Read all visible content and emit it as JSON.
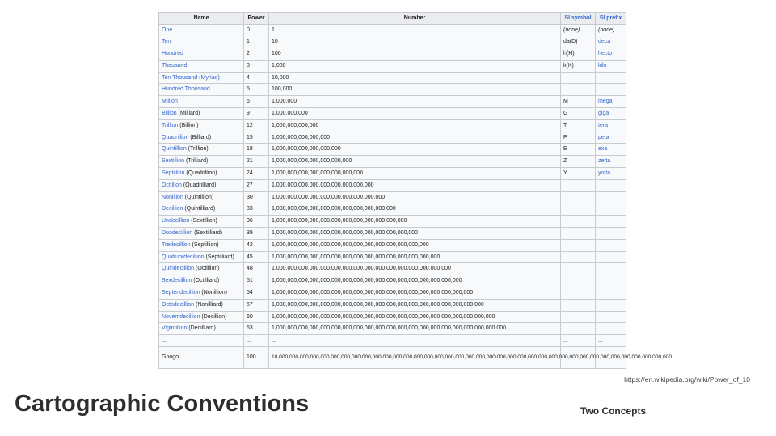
{
  "table": {
    "headers": {
      "name": "Name",
      "power": "Power",
      "number": "Number",
      "si_symbol": "SI symbol",
      "si_prefix": "SI prefix"
    },
    "rows": [
      {
        "name": "One",
        "alt": "",
        "power": "0",
        "number": "1",
        "symbol": "(none)",
        "prefix": "(none)"
      },
      {
        "name": "Ten",
        "alt": "",
        "power": "1",
        "number": "10",
        "symbol": "da(D)",
        "prefix": "deca"
      },
      {
        "name": "Hundred",
        "alt": "",
        "power": "2",
        "number": "100",
        "symbol": "h(H)",
        "prefix": "hecto"
      },
      {
        "name": "Thousand",
        "alt": "",
        "power": "3",
        "number": "1,000",
        "symbol": "k(K)",
        "prefix": "kilo"
      },
      {
        "name": "Ten Thousand (Myriad)",
        "alt": "",
        "power": "4",
        "number": "10,000",
        "symbol": "",
        "prefix": ""
      },
      {
        "name": "Hundred Thousand",
        "alt": "",
        "power": "5",
        "number": "100,000",
        "symbol": "",
        "prefix": ""
      },
      {
        "name": "Million",
        "alt": "",
        "power": "6",
        "number": "1,000,000",
        "symbol": "M",
        "prefix": "mega"
      },
      {
        "name": "Billion",
        "alt": " (Milliard)",
        "power": "9",
        "number": "1,000,000,000",
        "symbol": "G",
        "prefix": "giga"
      },
      {
        "name": "Trillion",
        "alt": " (Billion)",
        "power": "12",
        "number": "1,000,000,000,000",
        "symbol": "T",
        "prefix": "tera"
      },
      {
        "name": "Quadrillion",
        "alt": " (Billiard)",
        "power": "15",
        "number": "1,000,000,000,000,000",
        "symbol": "P",
        "prefix": "peta"
      },
      {
        "name": "Quintillion",
        "alt": " (Trillion)",
        "power": "18",
        "number": "1,000,000,000,000,000,000",
        "symbol": "E",
        "prefix": "exa"
      },
      {
        "name": "Sextillion",
        "alt": " (Trilliard)",
        "power": "21",
        "number": "1,000,000,000,000,000,000,000",
        "symbol": "Z",
        "prefix": "zetta"
      },
      {
        "name": "Septillion",
        "alt": " (Quadrillion)",
        "power": "24",
        "number": "1,000,000,000,000,000,000,000,000",
        "symbol": "Y",
        "prefix": "yotta"
      },
      {
        "name": "Octillion",
        "alt": " (Quadrilliard)",
        "power": "27",
        "number": "1,000,000,000,000,000,000,000,000,000",
        "symbol": "",
        "prefix": ""
      },
      {
        "name": "Nonillion",
        "alt": " (Quintillion)",
        "power": "30",
        "number": "1,000,000,000,000,000,000,000,000,000,000",
        "symbol": "",
        "prefix": ""
      },
      {
        "name": "Decillion",
        "alt": " (Quintilliard)",
        "power": "33",
        "number": "1,000,000,000,000,000,000,000,000,000,000,000",
        "symbol": "",
        "prefix": ""
      },
      {
        "name": "Undecillion",
        "alt": " (Sextillion)",
        "power": "36",
        "number": "1,000,000,000,000,000,000,000,000,000,000,000,000",
        "symbol": "",
        "prefix": ""
      },
      {
        "name": "Duodecillion",
        "alt": " (Sextilliard)",
        "power": "39",
        "number": "1,000,000,000,000,000,000,000,000,000,000,000,000,000",
        "symbol": "",
        "prefix": ""
      },
      {
        "name": "Tredecillion",
        "alt": " (Septillion)",
        "power": "42",
        "number": "1,000,000,000,000,000,000,000,000,000,000,000,000,000,000",
        "symbol": "",
        "prefix": ""
      },
      {
        "name": "Quattuordecillion",
        "alt": " (Septilliard)",
        "power": "45",
        "number": "1,000,000,000,000,000,000,000,000,000,000,000,000,000,000,000",
        "symbol": "",
        "prefix": ""
      },
      {
        "name": "Quindecillion",
        "alt": " (Octillion)",
        "power": "48",
        "number": "1,000,000,000,000,000,000,000,000,000,000,000,000,000,000,000,000",
        "symbol": "",
        "prefix": ""
      },
      {
        "name": "Sexdecillion",
        "alt": " (Octilliard)",
        "power": "51",
        "number": "1,000,000,000,000,000,000,000,000,000,000,000,000,000,000,000,000,000",
        "symbol": "",
        "prefix": ""
      },
      {
        "name": "Septendecillion",
        "alt": " (Nonillion)",
        "power": "54",
        "number": "1,000,000,000,000,000,000,000,000,000,000,000,000,000,000,000,000,000,000",
        "symbol": "",
        "prefix": ""
      },
      {
        "name": "Octodecillion",
        "alt": " (Nonilliard)",
        "power": "57",
        "number": "1,000,000,000,000,000,000,000,000,000,000,000,000,000,000,000,000,000,000,000",
        "symbol": "",
        "prefix": ""
      },
      {
        "name": "Novemdecillion",
        "alt": " (Decillion)",
        "power": "60",
        "number": "1,000,000,000,000,000,000,000,000,000,000,000,000,000,000,000,000,000,000,000,000",
        "symbol": "",
        "prefix": ""
      },
      {
        "name": "Vigintillion",
        "alt": " (Decilliard)",
        "power": "63",
        "number": "1,000,000,000,000,000,000,000,000,000,000,000,000,000,000,000,000,000,000,000,000,000",
        "symbol": "",
        "prefix": ""
      },
      {
        "name": "...",
        "alt": "",
        "power": "...",
        "number": "...",
        "symbol": "...",
        "prefix": "..."
      }
    ],
    "googol": {
      "name": "Googol",
      "power": "100",
      "number": "10,000,000,000,000,000,000,000,000,000,000,000,000,000,000,000,000,000,000,000,000,000,000,000,000,000,000,000,000,000,000,000,000,000,000,000,000,000,000"
    }
  },
  "source_url": "https://en.wikipedia.org/wiki/Power_of_10",
  "slide_title": "Cartographic Conventions",
  "slide_subtitle": "Two Concepts",
  "colors": {
    "link": "#3366cc",
    "header_bg": "#eaecf0",
    "cell_bg": "#f8f9fa",
    "border": "#c8ccd1"
  }
}
